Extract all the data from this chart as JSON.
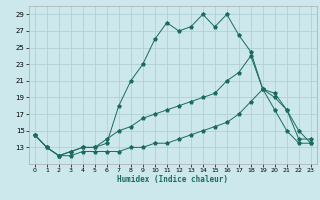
{
  "title": "",
  "xlabel": "Humidex (Indice chaleur)",
  "bg_color": "#cce8ec",
  "grid_color": "#b0d0d8",
  "line_color": "#1a6b5e",
  "xlim": [
    -0.5,
    23.5
  ],
  "ylim": [
    11,
    30
  ],
  "xticks": [
    0,
    1,
    2,
    3,
    4,
    5,
    6,
    7,
    8,
    9,
    10,
    11,
    12,
    13,
    14,
    15,
    16,
    17,
    18,
    19,
    20,
    21,
    22,
    23
  ],
  "yticks": [
    13,
    15,
    17,
    19,
    21,
    23,
    25,
    27,
    29
  ],
  "series1_x": [
    0,
    1,
    2,
    3,
    4,
    5,
    6,
    7,
    8,
    9,
    10,
    11,
    12,
    13,
    14,
    15,
    16,
    17,
    18,
    19,
    20,
    21,
    22,
    23
  ],
  "series1_y": [
    14.5,
    13.0,
    12.0,
    12.5,
    13.0,
    13.0,
    13.5,
    18.0,
    21.0,
    23.0,
    26.0,
    28.0,
    27.0,
    27.5,
    29.0,
    27.5,
    29.0,
    26.5,
    24.5,
    20.0,
    17.5,
    15.0,
    13.5,
    13.5
  ],
  "series2_x": [
    0,
    1,
    2,
    3,
    4,
    5,
    6,
    7,
    8,
    9,
    10,
    11,
    12,
    13,
    14,
    15,
    16,
    17,
    18,
    19,
    20,
    21,
    22,
    23
  ],
  "series2_y": [
    14.5,
    13.0,
    12.0,
    12.5,
    13.0,
    13.0,
    14.0,
    15.0,
    15.5,
    16.5,
    17.0,
    17.5,
    18.0,
    18.5,
    19.0,
    19.5,
    21.0,
    22.0,
    24.0,
    20.0,
    19.0,
    17.5,
    15.0,
    13.5
  ],
  "series3_x": [
    0,
    1,
    2,
    3,
    4,
    5,
    6,
    7,
    8,
    9,
    10,
    11,
    12,
    13,
    14,
    15,
    16,
    17,
    18,
    19,
    20,
    21,
    22,
    23
  ],
  "series3_y": [
    14.5,
    13.0,
    12.0,
    12.0,
    12.5,
    12.5,
    12.5,
    12.5,
    13.0,
    13.0,
    13.5,
    13.5,
    14.0,
    14.5,
    15.0,
    15.5,
    16.0,
    17.0,
    18.5,
    20.0,
    19.5,
    17.5,
    14.0,
    14.0
  ]
}
